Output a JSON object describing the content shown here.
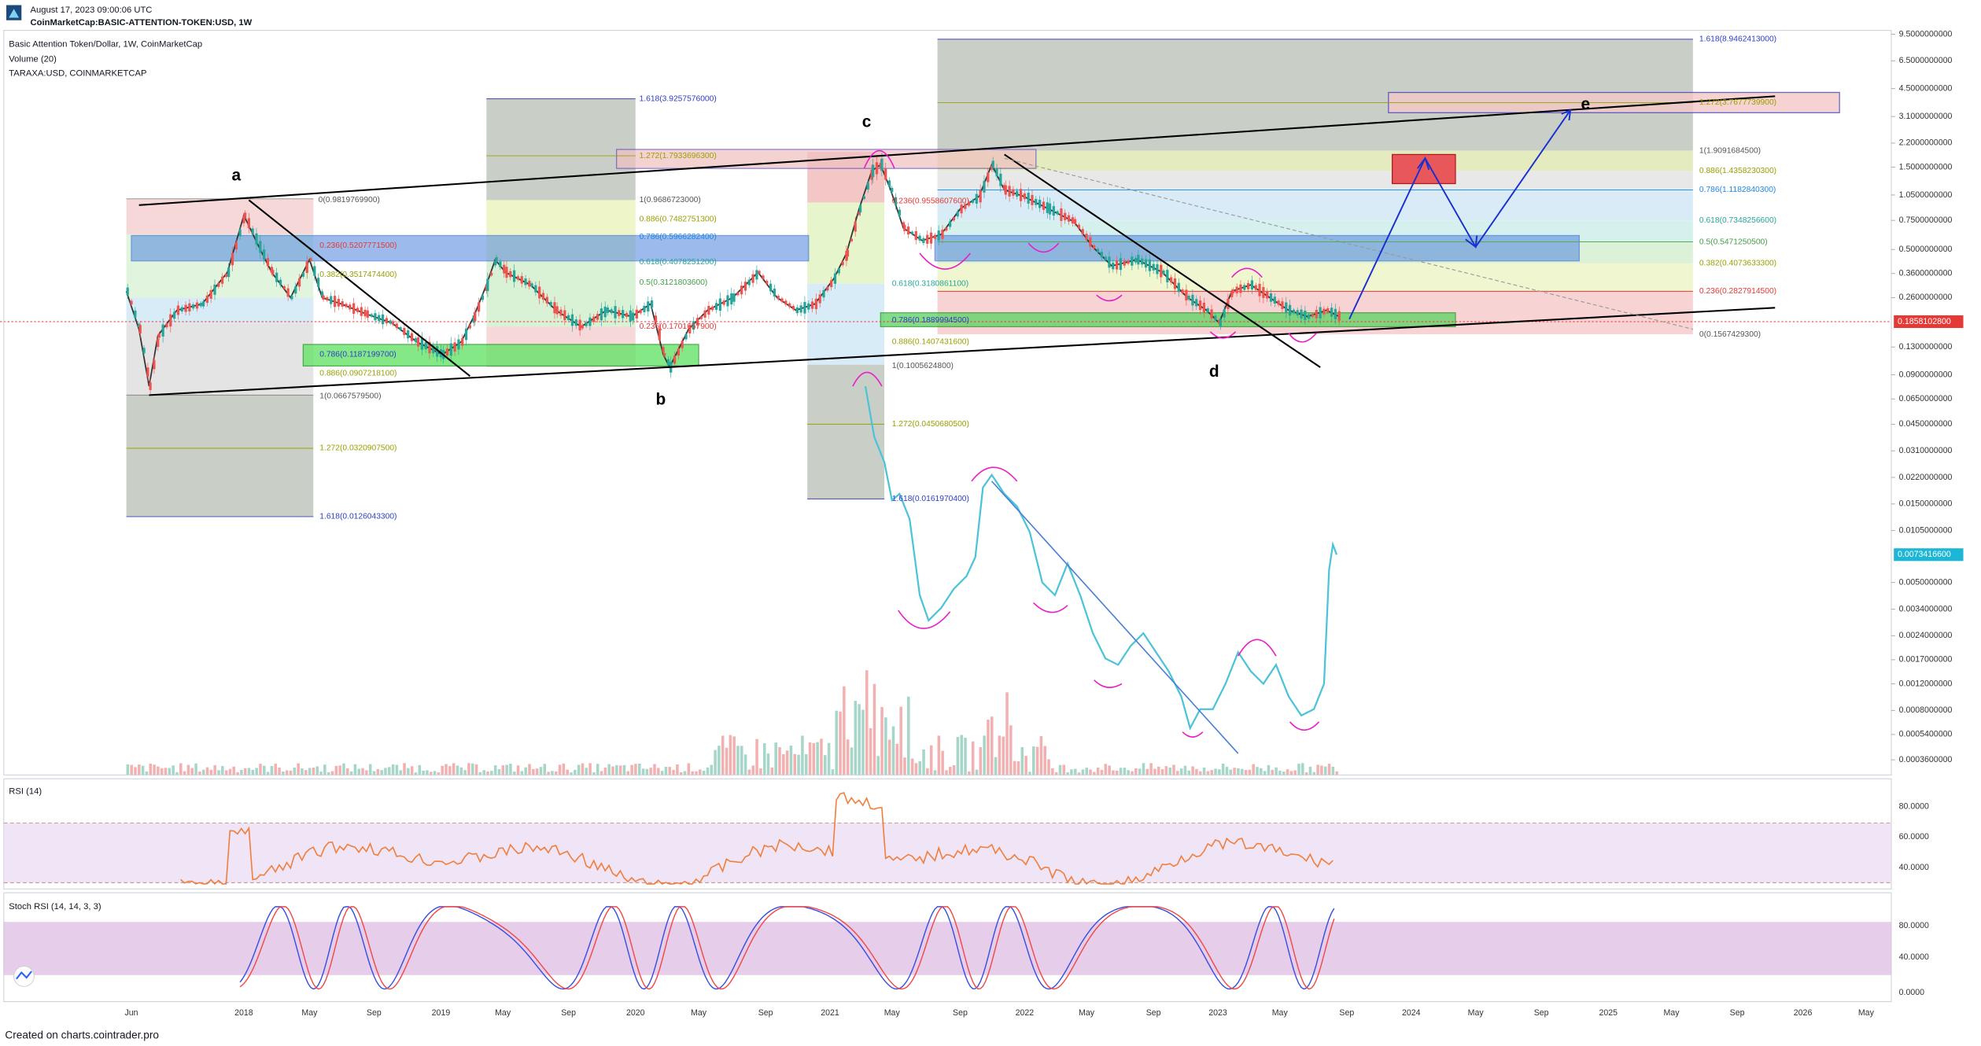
{
  "header": {
    "timestamp": "August 17, 2023 09:00:06 UTC",
    "symbol": "CoinMarketCap:BASIC-ATTENTION-TOKEN:USD, 1W"
  },
  "legend": {
    "title": "Basic Attention Token/Dollar, 1W, CoinMarketCap",
    "volume": "Volume (20)",
    "overlay": "TARAXA:USD, COINMARKETCAP"
  },
  "price_axis": {
    "labels": [
      "9.5000000000",
      "6.5000000000",
      "4.5000000000",
      "3.1000000000",
      "2.2000000000",
      "1.5000000000",
      "1.0500000000",
      "0.7500000000",
      "0.5000000000",
      "0.3600000000",
      "0.2600000000",
      "0.1300000000",
      "0.0900000000",
      "0.0650000000",
      "0.0450000000",
      "0.0310000000",
      "0.0220000000",
      "0.0150000000",
      "0.0105000000",
      "0.0050000000",
      "0.0034000000",
      "0.0024000000",
      "0.0017000000",
      "0.0012000000",
      "0.0008000000",
      "0.0005400000",
      "0.0003600000"
    ],
    "last_price": "0.1858102800",
    "overlay_price": "0.0073416600"
  },
  "time_axis": {
    "labels": [
      "Jun",
      "2018",
      "May",
      "Sep",
      "2019",
      "May",
      "Sep",
      "2020",
      "May",
      "Sep",
      "2021",
      "May",
      "Sep",
      "2022",
      "May",
      "Sep",
      "2023",
      "May",
      "Sep",
      "2024",
      "May",
      "Sep",
      "2025",
      "May",
      "Sep",
      "2026",
      "May"
    ]
  },
  "fib_labels": [
    "0(0.9819769900)",
    "0.236(0.5207771500)",
    "0.382(0.3517474400)",
    "0.786(0.1187199700)",
    "0.886(0.0907218100)",
    "1(0.0667579500)",
    "1.272(0.0320907500)",
    "1.618(0.0126043300)",
    "1.618(3.9257576000)",
    "1(0.9686723000)",
    "0.886(0.7482751300)",
    "0.786(0.5966282400)",
    "0.618(0.4078251200)",
    "0.5(0.3121803600)",
    "0.236(0.1701657900)",
    "1.272(1.7933696300)",
    "0.236(0.9558607600)",
    "0.618(0.3180861100)",
    "0.786(0.1889994500)",
    "0.886(0.1407431600)",
    "1(0.1005624800)",
    "1.272(0.0450680500)",
    "1.618(0.0161970400)",
    "1.618(8.9462413000)",
    "1.272(3.7677739900)",
    "1(1.9091684500)",
    "0.886(1.4358230300)",
    "0.786(1.1182840300)",
    "0.618(0.7348256600)",
    "0.5(0.5471250500)",
    "0.382(0.4073633300)",
    "0.236(0.2827914500)",
    "0(0.1567429300)"
  ],
  "wave_labels": [
    "a",
    "b",
    "c",
    "d",
    "e"
  ],
  "rsi": {
    "title": "RSI (14)",
    "labels": [
      "80.0000",
      "60.0000",
      "40.0000"
    ]
  },
  "stoch": {
    "title": "Stoch RSI (14, 14, 3, 3)",
    "labels": [
      "80.0000",
      "40.0000",
      "0.0000"
    ]
  },
  "footer": "Created on charts.cointrader.pro"
}
